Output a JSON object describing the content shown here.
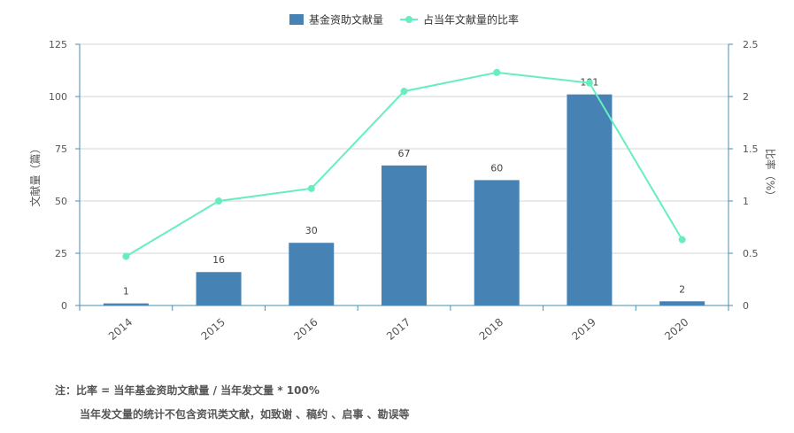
{
  "chart_data": {
    "type": "bar",
    "categories": [
      "2014",
      "2015",
      "2016",
      "2017",
      "2018",
      "2019",
      "2020"
    ],
    "series": [
      {
        "name": "基金资助文献量",
        "type": "bar",
        "axis": "left",
        "values": [
          1,
          16,
          30,
          67,
          60,
          101,
          2
        ],
        "data_labels": [
          "1",
          "16",
          "30",
          "67",
          "60",
          "101",
          "2"
        ],
        "color": "#4682b4"
      },
      {
        "name": "占当年文献量的比率",
        "type": "line",
        "axis": "right",
        "values": [
          0.47,
          1.0,
          1.12,
          2.05,
          2.23,
          2.13,
          0.63
        ],
        "color": "#66eec0"
      }
    ],
    "ylabel": "文献量（篇）",
    "y2label": "比率（%）",
    "ylim": [
      0,
      125
    ],
    "y2lim": [
      0,
      2.5
    ],
    "yticks": [
      "0",
      "25",
      "50",
      "75",
      "100",
      "125"
    ],
    "y2ticks": [
      "0",
      "0.5",
      "1",
      "1.5",
      "2",
      "2.5"
    ],
    "grid": true,
    "legend_position": "top-center"
  },
  "notes": {
    "line1": "注：比率 = 当年基金资助文献量 / 当年发文量 * 100%",
    "line2": "当年发文量的统计不包含资讯类文献，如致谢 、稿约 、启事 、勘误等"
  },
  "colors": {
    "axis": "#4a8db7",
    "grid": "#d6d6d6"
  }
}
